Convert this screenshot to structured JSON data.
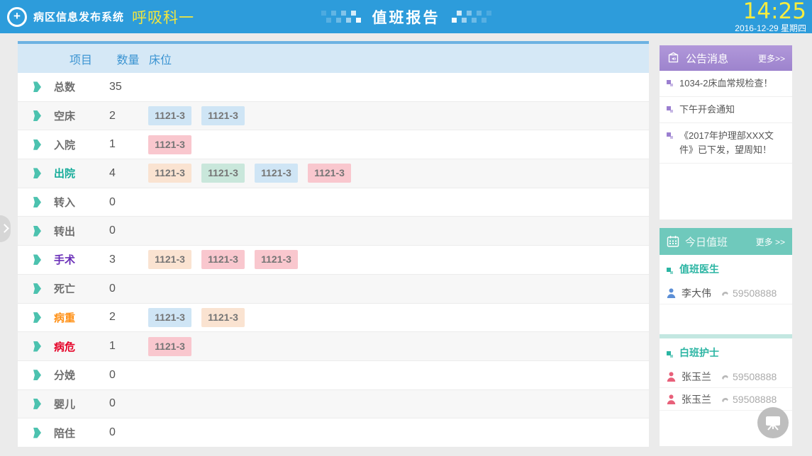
{
  "header": {
    "app_title": "病区信息发布系统",
    "department": "呼吸科一",
    "page_title": "值班报告",
    "time": "14:25",
    "date": "2016-12-29 星期四"
  },
  "colors": {
    "topbar_blue": "#2D9CDB",
    "accent_yellow": "#F2E63E",
    "arrow_teal": "#4CC2AF",
    "announce_purple": "#9D83CD",
    "duty_teal": "#6FC9BC",
    "badge_blue": "#CFE5F5",
    "badge_pink": "#F9C7CE",
    "badge_peach": "#FAE3D1",
    "badge_mint": "#C9E7DB"
  },
  "icons": {
    "logo": "medical-cross-circle",
    "announce_header": "notice-board",
    "duty_header": "calendar",
    "person_doctor": "doctor-figure",
    "person_nurse": "nurse-figure",
    "phone": "handset",
    "board_button": "presentation-easel",
    "drawer": "chevron-right"
  },
  "table": {
    "columns": [
      "项目",
      "数量",
      "床位"
    ],
    "rows": [
      {
        "label": "总数",
        "count": "35",
        "beds": []
      },
      {
        "label": "空床",
        "count": "2",
        "beds": [
          {
            "text": "1121-3",
            "bg": "#CFE5F5"
          },
          {
            "text": "1121-3",
            "bg": "#CFE5F5"
          }
        ]
      },
      {
        "label": "入院",
        "count": "1",
        "beds": [
          {
            "text": "1121-3",
            "bg": "#F9C7CE"
          }
        ]
      },
      {
        "label": "出院",
        "count": "4",
        "color": "#16AC9A",
        "beds": [
          {
            "text": "1121-3",
            "bg": "#FAE3D1"
          },
          {
            "text": "1121-3",
            "bg": "#C9E7DB"
          },
          {
            "text": "1121-3",
            "bg": "#CFE5F5"
          },
          {
            "text": "1121-3",
            "bg": "#F9C7CE"
          }
        ]
      },
      {
        "label": "转入",
        "count": "0",
        "beds": []
      },
      {
        "label": "转出",
        "count": "0",
        "beds": []
      },
      {
        "label": "手术",
        "count": "3",
        "color": "#6A2FB8",
        "beds": [
          {
            "text": "1121-3",
            "bg": "#FAE3D1"
          },
          {
            "text": "1121-3",
            "bg": "#F9C7CE"
          },
          {
            "text": "1121-3",
            "bg": "#F9C7CE"
          }
        ]
      },
      {
        "label": "死亡",
        "count": "0",
        "beds": []
      },
      {
        "label": "病重",
        "count": "2",
        "color": "#FF9015",
        "beds": [
          {
            "text": "1121-3",
            "bg": "#CFE5F5"
          },
          {
            "text": "1121-3",
            "bg": "#FAE3D1"
          }
        ]
      },
      {
        "label": "病危",
        "count": "1",
        "color": "#E50127",
        "beds": [
          {
            "text": "1121-3",
            "bg": "#F9C7CE"
          }
        ]
      },
      {
        "label": "分娩",
        "count": "0",
        "beds": []
      },
      {
        "label": "婴儿",
        "count": "0",
        "beds": []
      },
      {
        "label": "陪住",
        "count": "0",
        "beds": []
      }
    ]
  },
  "announcements": {
    "title": "公告消息",
    "more": "更多>>",
    "items": [
      "1034-2床血常规检查！",
      "下午开会通知",
      "《2017年护理部XXX文件》已下发，望周知！"
    ]
  },
  "duty": {
    "title": "今日值班",
    "more": "更多 >>",
    "sections": [
      {
        "heading": "值班医生",
        "people": [
          {
            "name": "李大伟",
            "phone": "59508888",
            "role": "doctor"
          }
        ]
      },
      {
        "heading": "白班护士",
        "people": [
          {
            "name": "张玉兰",
            "phone": "59508888",
            "role": "nurse"
          },
          {
            "name": "张玉兰",
            "phone": "59508888",
            "role": "nurse"
          }
        ]
      }
    ]
  }
}
